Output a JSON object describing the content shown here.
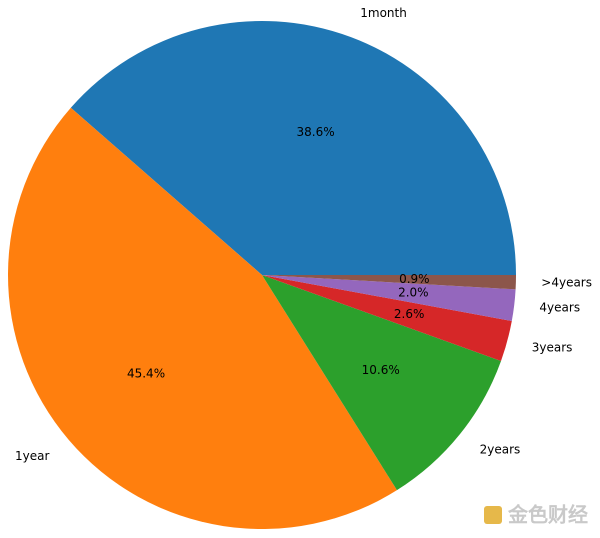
{
  "chart_data": {
    "type": "pie",
    "categories": [
      "1month",
      "1year",
      "2years",
      "3years",
      "4years",
      ">4years"
    ],
    "values": [
      38.6,
      45.4,
      10.6,
      2.6,
      2.0,
      0.9
    ],
    "value_labels": [
      "38.6%",
      "45.4%",
      "10.6%",
      "2.6%",
      "2.0%",
      "0.9%"
    ],
    "colors": [
      "#1f77b4",
      "#ff7f0e",
      "#2ca02c",
      "#d62728",
      "#9467bd",
      "#8c564b"
    ]
  },
  "watermark": "金色财经"
}
